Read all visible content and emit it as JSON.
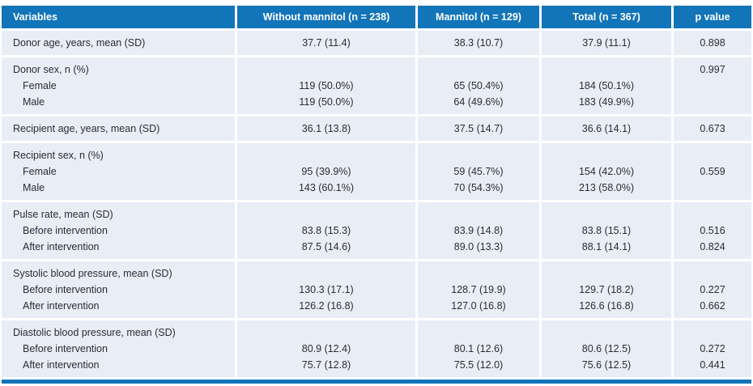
{
  "table": {
    "colors": {
      "header_bg": "#1274b9",
      "header_text": "#ffffff",
      "row_bg": "#e9edf6",
      "body_text": "#2c2c31",
      "bottom_rule": "#1274b9"
    },
    "columns": [
      {
        "label": "Variables"
      },
      {
        "label": "Without mannitol (n = 238)"
      },
      {
        "label": "Mannitol (n = 129)"
      },
      {
        "label": "Total (n = 367)"
      },
      {
        "label": "p value"
      }
    ],
    "groups": [
      {
        "lines": [
          {
            "label": "Donor age, years, mean (SD)",
            "c1": "37.7 (11.4)",
            "c2": "38.3 (10.7)",
            "c3": "37.9 (11.1)",
            "p": "0.898"
          }
        ]
      },
      {
        "lines": [
          {
            "label": "Donor sex, n (%)",
            "p": "0.997"
          },
          {
            "label": "Female",
            "indent": true,
            "c1": "119 (50.0%)",
            "c2": "65 (50.4%)",
            "c3": "184 (50.1%)"
          },
          {
            "label": "Male",
            "indent": true,
            "c1": "119 (50.0%)",
            "c2": "64 (49.6%)",
            "c3": "183 (49.9%)"
          }
        ]
      },
      {
        "lines": [
          {
            "label": "Recipient age, years, mean (SD)",
            "c1": "36.1 (13.8)",
            "c2": "37.5 (14.7)",
            "c3": "36.6 (14.1)",
            "p": "0.673"
          }
        ]
      },
      {
        "lines": [
          {
            "label": "Recipient sex, n (%)"
          },
          {
            "label": "Female",
            "indent": true,
            "c1": "95 (39.9%)",
            "c2": "59 (45.7%)",
            "c3": "154 (42.0%)",
            "p": "0.559"
          },
          {
            "label": "Male",
            "indent": true,
            "c1": "143 (60.1%)",
            "c2": "70 (54.3%)",
            "c3": "213 (58.0%)"
          }
        ]
      },
      {
        "lines": [
          {
            "label": "Pulse rate, mean (SD)"
          },
          {
            "label": "Before intervention",
            "indent": true,
            "c1": "83.8 (15.3)",
            "c2": "83.9 (14.8)",
            "c3": "83.8 (15.1)",
            "p": "0.516"
          },
          {
            "label": "After intervention",
            "indent": true,
            "c1": "87.5 (14.6)",
            "c2": "89.0 (13.3)",
            "c3": "88.1 (14.1)",
            "p": "0.824"
          }
        ]
      },
      {
        "lines": [
          {
            "label": "Systolic blood pressure, mean (SD)"
          },
          {
            "label": "Before intervention",
            "indent": true,
            "c1": "130.3 (17.1)",
            "c2": "128.7 (19.9)",
            "c3": "129.7 (18.2)",
            "p": "0.227"
          },
          {
            "label": "After intervention",
            "indent": true,
            "c1": "126.2 (16.8)",
            "c2": "127.0 (16.8)",
            "c3": "126.6 (16.8)",
            "p": "0.662"
          }
        ]
      },
      {
        "lines": [
          {
            "label": "Diastolic blood pressure, mean (SD)"
          },
          {
            "label": "Before intervention",
            "indent": true,
            "c1": "80.9 (12.4)",
            "c2": "80.1 (12.6)",
            "c3": "80.6 (12.5)",
            "p": "0.272"
          },
          {
            "label": "After intervention",
            "indent": true,
            "c1": "75.7 (12.8)",
            "c2": "75.5 (12.0)",
            "c3": "75.6 (12.5)",
            "p": "0.441"
          }
        ]
      }
    ]
  },
  "chart_data": {
    "type": "table",
    "headers": [
      "Variables",
      "Without mannitol (n = 238)",
      "Mannitol (n = 129)",
      "Total (n = 367)",
      "p value"
    ],
    "rows": [
      [
        "Donor age, years, mean (SD)",
        "37.7 (11.4)",
        "38.3 (10.7)",
        "37.9 (11.1)",
        "0.898"
      ],
      [
        "Donor sex, n (%)",
        "",
        "",
        "",
        "0.997"
      ],
      [
        "  Female",
        "119 (50.0%)",
        "65 (50.4%)",
        "184 (50.1%)",
        ""
      ],
      [
        "  Male",
        "119 (50.0%)",
        "64 (49.6%)",
        "183 (49.9%)",
        ""
      ],
      [
        "Recipient age, years, mean (SD)",
        "36.1 (13.8)",
        "37.5 (14.7)",
        "36.6 (14.1)",
        "0.673"
      ],
      [
        "Recipient sex, n (%)",
        "",
        "",
        "",
        ""
      ],
      [
        "  Female",
        "95 (39.9%)",
        "59 (45.7%)",
        "154 (42.0%)",
        "0.559"
      ],
      [
        "  Male",
        "143 (60.1%)",
        "70 (54.3%)",
        "213 (58.0%)",
        ""
      ],
      [
        "Pulse rate, mean (SD)",
        "",
        "",
        "",
        ""
      ],
      [
        "  Before intervention",
        "83.8 (15.3)",
        "83.9 (14.8)",
        "83.8 (15.1)",
        "0.516"
      ],
      [
        "  After intervention",
        "87.5 (14.6)",
        "89.0 (13.3)",
        "88.1 (14.1)",
        "0.824"
      ],
      [
        "Systolic blood pressure, mean (SD)",
        "",
        "",
        "",
        ""
      ],
      [
        "  Before intervention",
        "130.3 (17.1)",
        "128.7 (19.9)",
        "129.7 (18.2)",
        "0.227"
      ],
      [
        "  After intervention",
        "126.2 (16.8)",
        "127.0 (16.8)",
        "126.6 (16.8)",
        "0.662"
      ],
      [
        "Diastolic blood pressure, mean (SD)",
        "",
        "",
        "",
        ""
      ],
      [
        "  Before intervention",
        "80.9 (12.4)",
        "80.1 (12.6)",
        "80.6 (12.5)",
        "0.272"
      ],
      [
        "  After intervention",
        "75.7 (12.8)",
        "75.5 (12.0)",
        "75.6 (12.5)",
        "0.441"
      ]
    ]
  }
}
